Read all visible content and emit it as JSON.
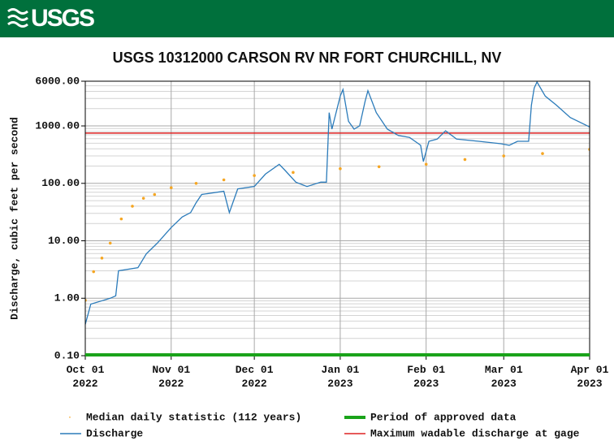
{
  "header": {
    "logo": "USGS"
  },
  "chart_data": {
    "type": "line",
    "title": "USGS 10312000 CARSON RV NR FORT CHURCHILL, NV",
    "y_label": "Discharge, cubic feet per second",
    "log_y": true,
    "grid": true,
    "xlim": [
      "2022-10-01",
      "2023-04-01"
    ],
    "xticks": [
      {
        "value": "2022-10-01",
        "label": "Oct 01\n2022"
      },
      {
        "value": "2022-11-01",
        "label": "Nov 01\n2022"
      },
      {
        "value": "2022-12-01",
        "label": "Dec 01\n2022"
      },
      {
        "value": "2023-01-01",
        "label": "Jan 01\n2023"
      },
      {
        "value": "2023-02-01",
        "label": "Feb 01\n2023"
      },
      {
        "value": "2023-03-01",
        "label": "Mar 01\n2023"
      },
      {
        "value": "2023-04-01",
        "label": "Apr 01\n2023"
      }
    ],
    "ylim": [
      0.1,
      6000
    ],
    "yticks": [
      {
        "value": 0.1,
        "label": "0.10"
      },
      {
        "value": 1,
        "label": "1.00"
      },
      {
        "value": 10,
        "label": "10.00"
      },
      {
        "value": 100,
        "label": "100.00"
      },
      {
        "value": 1000,
        "label": "1000.00"
      },
      {
        "value": 6000,
        "label": "6000.00"
      }
    ],
    "series": [
      {
        "name": "Median daily statistic (112 years)",
        "color": "#f5a623",
        "style": "points",
        "x": [
          "2022-10-01",
          "2022-10-04",
          "2022-10-07",
          "2022-10-10",
          "2022-10-14",
          "2022-10-18",
          "2022-10-22",
          "2022-10-26",
          "2022-11-01",
          "2022-11-10",
          "2022-11-20",
          "2022-12-01",
          "2022-12-15",
          "2023-01-01",
          "2023-01-15",
          "2023-02-01",
          "2023-02-15",
          "2023-03-01",
          "2023-03-15",
          "2023-04-01"
        ],
        "values": [
          0.92,
          2.9,
          5.0,
          9.1,
          24,
          40,
          55,
          64,
          84,
          100,
          115,
          137,
          155,
          180,
          195,
          215,
          260,
          300,
          330,
          390
        ]
      },
      {
        "name": "Discharge",
        "color": "#2b7bba",
        "style": "line",
        "x": [
          "2022-10-01",
          "2022-10-03",
          "2022-10-10",
          "2022-10-12",
          "2022-10-13",
          "2022-10-20",
          "2022-10-23",
          "2022-10-27",
          "2022-11-01",
          "2022-11-05",
          "2022-11-08",
          "2022-11-10",
          "2022-11-12",
          "2022-11-20",
          "2022-11-22",
          "2022-11-25",
          "2022-12-01",
          "2022-12-05",
          "2022-12-10",
          "2022-12-12",
          "2022-12-16",
          "2022-12-20",
          "2022-12-25",
          "2022-12-27",
          "2022-12-28",
          "2022-12-29",
          "2023-01-01",
          "2023-01-02",
          "2023-01-04",
          "2023-01-06",
          "2023-01-08",
          "2023-01-10",
          "2023-01-11",
          "2023-01-14",
          "2023-01-18",
          "2023-01-22",
          "2023-01-26",
          "2023-01-30",
          "2023-01-31",
          "2023-02-02",
          "2023-02-05",
          "2023-02-08",
          "2023-02-12",
          "2023-02-20",
          "2023-02-28",
          "2023-03-03",
          "2023-03-06",
          "2023-03-10",
          "2023-03-11",
          "2023-03-12",
          "2023-03-13",
          "2023-03-16",
          "2023-03-20",
          "2023-03-25",
          "2023-04-01"
        ],
        "values": [
          0.35,
          0.79,
          1.0,
          1.1,
          3.0,
          3.4,
          5.9,
          9.1,
          17,
          26,
          31,
          46,
          64,
          73,
          31,
          80,
          88,
          145,
          215,
          170,
          105,
          88,
          105,
          105,
          1700,
          880,
          3300,
          4300,
          1200,
          880,
          1000,
          2700,
          4100,
          1700,
          880,
          680,
          630,
          460,
          240,
          540,
          590,
          820,
          590,
          540,
          490,
          460,
          540,
          540,
          2300,
          4600,
          5800,
          3300,
          2300,
          1400,
          960
        ]
      }
    ],
    "threshold": {
      "name": "Maximum wadable discharge at gage",
      "value": 750,
      "color": "#dd2222"
    },
    "approved": {
      "name": "Period of approved data",
      "color": "#1aa31a",
      "range": [
        "2022-10-01",
        "2023-04-01"
      ]
    }
  }
}
